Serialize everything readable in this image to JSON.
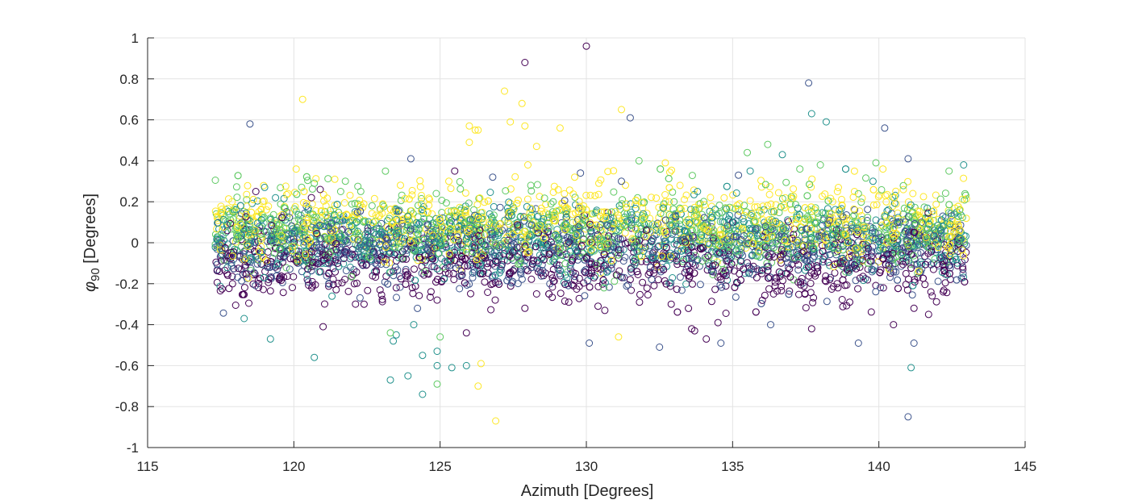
{
  "chart_data": {
    "type": "scatter",
    "title": "",
    "xlabel": "Azimuth [Degrees]",
    "ylabel_symbol": "φ",
    "ylabel_subscript": "90",
    "ylabel_rest": " [Degrees]",
    "xlim": [
      115,
      145
    ],
    "ylim": [
      -1,
      1
    ],
    "xticks": [
      115,
      120,
      125,
      130,
      135,
      140,
      145
    ],
    "yticks": [
      -1,
      -0.8,
      -0.6,
      -0.4,
      -0.2,
      0,
      0.2,
      0.4,
      0.6,
      0.8,
      1
    ],
    "grid": true,
    "marker": "open-circle",
    "colormap": [
      "#440154",
      "#3b528b",
      "#21918c",
      "#5ec962",
      "#fde725"
    ],
    "series": [
      {
        "color": "#440154",
        "points": [
          [
            118.7,
            0.25
          ],
          [
            121.0,
            -0.41
          ],
          [
            120.6,
            0.22
          ],
          [
            122.4,
            -0.3
          ],
          [
            124.9,
            -0.28
          ],
          [
            125.5,
            0.35
          ],
          [
            125.9,
            -0.44
          ],
          [
            127.9,
            -0.32
          ],
          [
            129.4,
            -0.29
          ],
          [
            130.0,
            0.96
          ],
          [
            130.4,
            -0.31
          ],
          [
            133.6,
            -0.42
          ],
          [
            133.7,
            -0.43
          ],
          [
            134.1,
            -0.47
          ],
          [
            134.5,
            -0.39
          ],
          [
            137.7,
            -0.42
          ],
          [
            140.5,
            -0.4
          ],
          [
            141.2,
            -0.32
          ],
          [
            141.7,
            -0.35
          ],
          [
            119.5,
            -0.18
          ],
          [
            123.5,
            -0.22
          ],
          [
            126.8,
            -0.2
          ],
          [
            128.3,
            -0.25
          ],
          [
            131.5,
            -0.18
          ],
          [
            132.9,
            -0.3
          ],
          [
            136.4,
            -0.25
          ],
          [
            138.6,
            -0.22
          ],
          [
            142.2,
            -0.24
          ],
          [
            127.9,
            0.88
          ],
          [
            120.9,
            0.26
          ]
        ]
      },
      {
        "color": "#3b528b",
        "points": [
          [
            118.5,
            0.58
          ],
          [
            131.5,
            0.61
          ],
          [
            137.6,
            0.78
          ],
          [
            140.2,
            0.56
          ],
          [
            141.0,
            -0.85
          ],
          [
            141.2,
            -0.49
          ],
          [
            132.5,
            -0.51
          ],
          [
            130.1,
            -0.49
          ],
          [
            134.6,
            -0.49
          ],
          [
            139.3,
            -0.49
          ],
          [
            124.0,
            0.41
          ],
          [
            141.0,
            0.41
          ],
          [
            136.3,
            -0.4
          ],
          [
            126.8,
            0.32
          ],
          [
            129.8,
            0.34
          ],
          [
            131.2,
            0.3
          ],
          [
            135.2,
            0.33
          ]
        ]
      },
      {
        "color": "#21918c",
        "points": [
          [
            137.7,
            0.63
          ],
          [
            138.2,
            0.59
          ],
          [
            141.1,
            -0.61
          ],
          [
            119.2,
            -0.47
          ],
          [
            120.7,
            -0.56
          ],
          [
            123.9,
            -0.65
          ],
          [
            123.3,
            -0.67
          ],
          [
            124.4,
            -0.74
          ],
          [
            125.4,
            -0.61
          ],
          [
            124.9,
            -0.53
          ],
          [
            124.9,
            -0.6
          ],
          [
            125.9,
            -0.6
          ],
          [
            123.4,
            -0.48
          ],
          [
            124.1,
            -0.4
          ],
          [
            124.4,
            -0.55
          ],
          [
            133.8,
            0.25
          ],
          [
            135.6,
            0.35
          ],
          [
            136.7,
            0.43
          ],
          [
            139.8,
            0.3
          ],
          [
            142.9,
            0.38
          ],
          [
            118.3,
            -0.37
          ],
          [
            119.0,
            0.27
          ],
          [
            123.5,
            -0.45
          ]
        ]
      },
      {
        "color": "#5ec962",
        "points": [
          [
            124.9,
            -0.69
          ],
          [
            123.3,
            -0.44
          ],
          [
            125.0,
            -0.46
          ],
          [
            135.5,
            0.44
          ],
          [
            136.2,
            0.48
          ],
          [
            137.3,
            0.36
          ],
          [
            139.9,
            0.39
          ],
          [
            142.4,
            0.35
          ],
          [
            138.0,
            0.38
          ],
          [
            120.7,
            0.29
          ],
          [
            121.6,
            0.25
          ],
          [
            128.1,
            0.28
          ],
          [
            130.6,
            -0.22
          ],
          [
            131.8,
            0.4
          ]
        ]
      },
      {
        "color": "#fde725",
        "points": [
          [
            120.3,
            0.7
          ],
          [
            127.2,
            0.74
          ],
          [
            127.8,
            0.68
          ],
          [
            126.0,
            0.57
          ],
          [
            126.2,
            0.55
          ],
          [
            126.0,
            0.49
          ],
          [
            127.4,
            0.59
          ],
          [
            128.3,
            0.47
          ],
          [
            129.1,
            0.56
          ],
          [
            127.9,
            0.57
          ],
          [
            131.2,
            0.65
          ],
          [
            126.9,
            -0.87
          ],
          [
            126.3,
            -0.7
          ],
          [
            126.4,
            -0.59
          ],
          [
            131.1,
            -0.46
          ],
          [
            121.4,
            0.31
          ],
          [
            125.3,
            0.3
          ],
          [
            126.3,
            0.55
          ],
          [
            128.0,
            0.38
          ],
          [
            129.6,
            0.32
          ],
          [
            132.7,
            0.39
          ],
          [
            133.2,
            0.28
          ],
          [
            121.1,
            0.18
          ],
          [
            119.8,
            0.24
          ]
        ]
      }
    ],
    "cloud": {
      "x_range": [
        117.3,
        143.0
      ],
      "y_center": 0.0,
      "y_spread": 0.12,
      "points_per_series": 900,
      "series_offsets": [
        -0.1,
        -0.03,
        0.02,
        0.06,
        0.1
      ]
    }
  }
}
